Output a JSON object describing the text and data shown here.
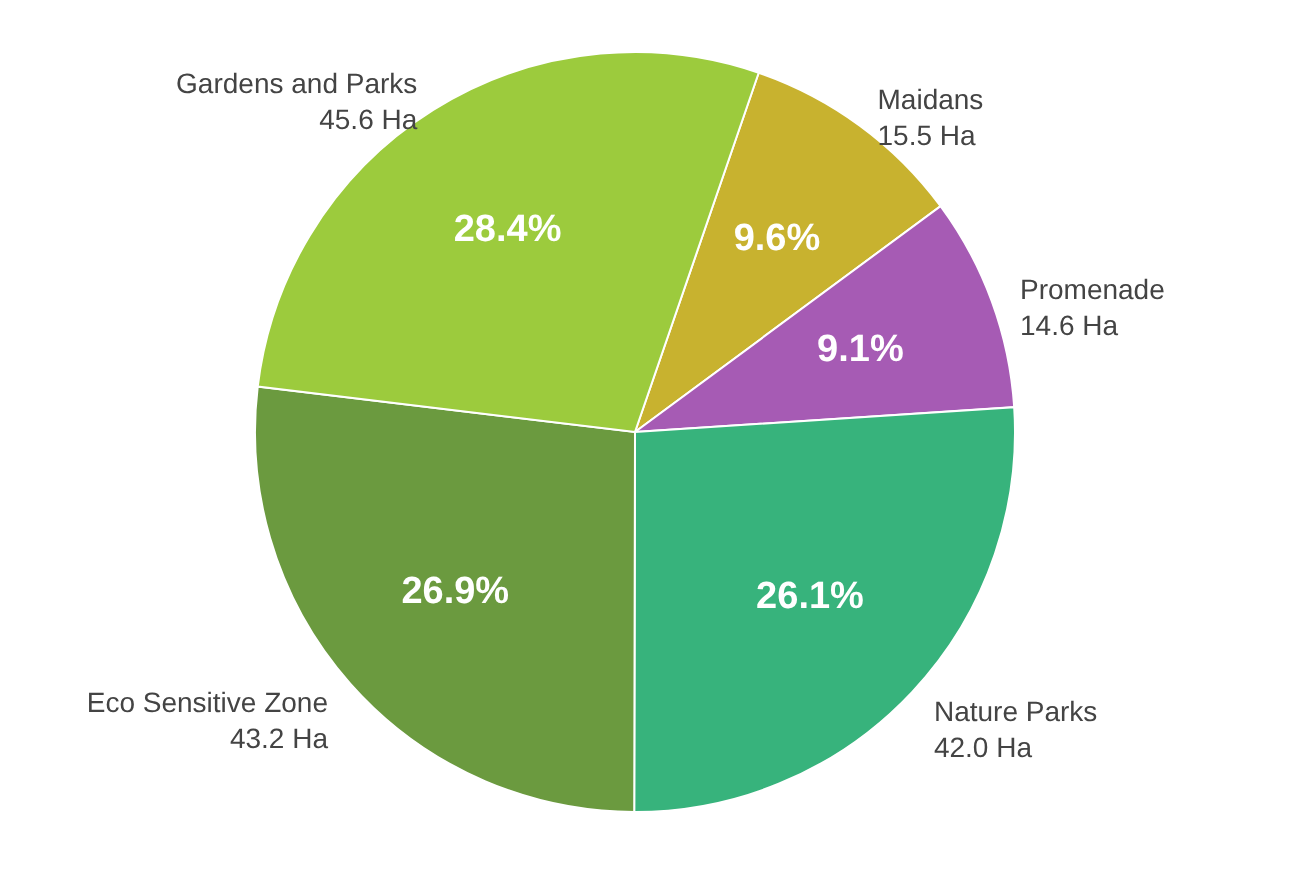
{
  "chart_data": {
    "type": "pie",
    "categories": [
      "Maidans\n15.5 Ha",
      "Promenade\n14.6 Ha",
      "Nature Parks\n42.0 Ha",
      "Eco Sensitive Zone\n43.2 Ha",
      "Gardens and Parks\n45.6 Ha"
    ],
    "values": [
      9.6,
      9.1,
      26.1,
      26.9,
      28.4
    ],
    "value_labels": [
      "9.6%",
      "9.1%",
      "26.1%",
      "26.9%",
      "28.4%"
    ],
    "colors": [
      "#c8b22f",
      "#a65bb4",
      "#37b37c",
      "#6b9a3f",
      "#9ccb3d"
    ],
    "legend": false
  }
}
